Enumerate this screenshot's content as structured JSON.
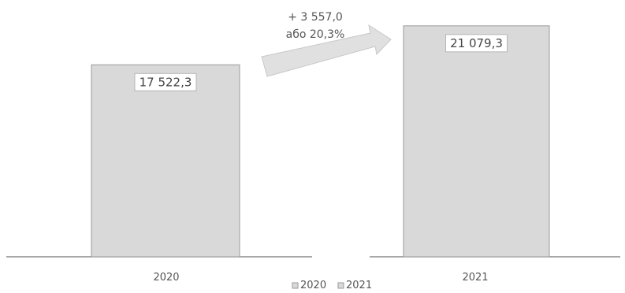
{
  "chart_data": {
    "type": "bar",
    "categories": [
      "2020",
      "2021"
    ],
    "series": [
      {
        "name": "2020",
        "values": [
          17522.3,
          null
        ]
      },
      {
        "name": "2021",
        "values": [
          null,
          21079.3
        ]
      }
    ],
    "data_labels": [
      "17 522,3",
      "21 079,3"
    ],
    "title": "",
    "xlabel": "",
    "ylabel": "",
    "ylim": [
      0,
      22000
    ],
    "grid": false,
    "legend": {
      "position": "bottom",
      "entries": [
        "2020",
        "2021"
      ]
    },
    "annotation": {
      "line1": "+ 3 557,0",
      "line2": "або 20,3%",
      "arrow": "right"
    },
    "colors": {
      "bar_fill": "#d9d9d9",
      "bar_stroke": "#9a9a9a",
      "label_box": "#ffffff",
      "axis": "#8c8c8c",
      "arrow_fill": "#e0e0e0"
    }
  }
}
